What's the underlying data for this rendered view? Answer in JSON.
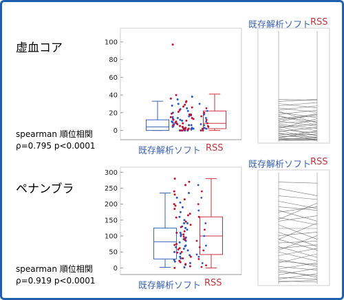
{
  "chart_data": [
    {
      "type": "box",
      "title": "虚血コア",
      "categories": [
        "既存解析ソフト",
        "RSS"
      ],
      "ylim": [
        -5,
        110
      ],
      "yticks": [
        0,
        20,
        40,
        60,
        80,
        100
      ],
      "grid": false,
      "series": [
        {
          "name": "既存解析ソフト",
          "color": "#3a63b8",
          "min": 0,
          "q1": 0,
          "median": 4,
          "q3": 12,
          "max": 33
        },
        {
          "name": "RSS",
          "color": "#c8323c",
          "min": 0,
          "q1": 2,
          "median": 8,
          "q3": 22,
          "max": 41
        }
      ],
      "points": {
        "blue": [
          0,
          1,
          2,
          3,
          5,
          6,
          8,
          10,
          12,
          14,
          16,
          18,
          20,
          22,
          25,
          28,
          30,
          35,
          0,
          2,
          4,
          7,
          9,
          11,
          13,
          15,
          3,
          1,
          0,
          6,
          38,
          24
        ],
        "red": [
          0,
          1,
          2,
          4,
          5,
          7,
          9,
          11,
          13,
          15,
          17,
          19,
          21,
          23,
          26,
          29,
          32,
          36,
          40,
          97,
          1,
          3,
          6,
          8,
          10,
          12,
          2,
          0,
          27,
          14,
          33,
          18
        ],
        "rss": [
          0,
          1,
          2,
          3,
          5,
          6,
          8,
          10,
          12,
          14,
          16,
          18,
          20,
          22,
          0,
          2,
          4,
          7,
          25,
          30
        ]
      },
      "stat_label": "spearman 順位相関",
      "stat_value": "ρ=0.795 p<0.0001",
      "pairs": [
        [
          0,
          0
        ],
        [
          0,
          2
        ],
        [
          1,
          3
        ],
        [
          2,
          1
        ],
        [
          3,
          6
        ],
        [
          4,
          3
        ],
        [
          5,
          8
        ],
        [
          6,
          5
        ],
        [
          8,
          12
        ],
        [
          10,
          7
        ],
        [
          12,
          15
        ],
        [
          14,
          9
        ],
        [
          16,
          18
        ],
        [
          18,
          13
        ],
        [
          20,
          24
        ],
        [
          22,
          17
        ],
        [
          24,
          28
        ],
        [
          26,
          21
        ],
        [
          28,
          32
        ],
        [
          30,
          26
        ],
        [
          32,
          35
        ],
        [
          34,
          30
        ],
        [
          36,
          38
        ],
        [
          38,
          37
        ],
        [
          2,
          9
        ],
        [
          9,
          2
        ],
        [
          15,
          11
        ],
        [
          11,
          20
        ],
        [
          7,
          0
        ],
        [
          13,
          4
        ],
        [
          19,
          23
        ],
        [
          23,
          14
        ],
        [
          27,
          16
        ],
        [
          17,
          25
        ],
        [
          1,
          0
        ],
        [
          0,
          1
        ]
      ],
      "pair_ylim": [
        0,
        100
      ],
      "pair_labels": [
        "既存解析ソフト",
        "RSS"
      ]
    },
    {
      "type": "box",
      "title": "ペナンブラ",
      "categories": [
        "既存解析ソフト",
        "RSS"
      ],
      "ylim": [
        -10,
        305
      ],
      "yticks": [
        0,
        50,
        100,
        150,
        200,
        250,
        300
      ],
      "grid": false,
      "series": [
        {
          "name": "既存解析ソフト",
          "color": "#3a63b8",
          "min": 2,
          "q1": 28,
          "median": 82,
          "q3": 125,
          "max": 235
        },
        {
          "name": "RSS",
          "color": "#c8323c",
          "min": 0,
          "q1": 42,
          "median": 100,
          "q3": 160,
          "max": 280
        }
      ],
      "points": {
        "blue": [
          2,
          10,
          20,
          30,
          40,
          50,
          60,
          70,
          80,
          90,
          100,
          110,
          120,
          130,
          140,
          150,
          160,
          175,
          190,
          205,
          220,
          235,
          25,
          45,
          65,
          85,
          105,
          125,
          55,
          95,
          15,
          140,
          68,
          35
        ],
        "red": [
          0,
          12,
          22,
          35,
          48,
          58,
          72,
          88,
          98,
          115,
          128,
          145,
          158,
          170,
          185,
          200,
          215,
          240,
          260,
          270,
          280,
          30,
          75,
          105,
          135,
          165,
          5,
          50,
          62,
          92,
          18,
          195,
          230,
          110
        ],
        "rss": [
          3,
          15,
          28,
          42,
          55,
          70,
          85,
          100,
          120,
          140,
          160,
          180,
          200,
          220,
          240,
          260,
          8,
          35,
          65
        ]
      },
      "stat_label": "spearman 順位相関",
      "stat_value": "ρ=0.919 p<0.0001",
      "pairs": [
        [
          278,
          275
        ],
        [
          260,
          240
        ],
        [
          240,
          230
        ],
        [
          225,
          205
        ],
        [
          210,
          200
        ],
        [
          195,
          210
        ],
        [
          180,
          160
        ],
        [
          170,
          185
        ],
        [
          160,
          120
        ],
        [
          150,
          150
        ],
        [
          140,
          100
        ],
        [
          130,
          140
        ],
        [
          120,
          90
        ],
        [
          110,
          115
        ],
        [
          100,
          70
        ],
        [
          95,
          105
        ],
        [
          85,
          60
        ],
        [
          75,
          95
        ],
        [
          65,
          45
        ],
        [
          55,
          80
        ],
        [
          45,
          35
        ],
        [
          38,
          55
        ],
        [
          30,
          20
        ],
        [
          22,
          40
        ],
        [
          15,
          10
        ],
        [
          10,
          25
        ],
        [
          5,
          2
        ],
        [
          2,
          8
        ],
        [
          200,
          170
        ],
        [
          175,
          220
        ],
        [
          120,
          165
        ],
        [
          90,
          130
        ],
        [
          60,
          50
        ],
        [
          35,
          15
        ]
      ],
      "pair_ylim": [
        0,
        300
      ],
      "pair_labels": [
        "既存解析ソフト",
        "RSS"
      ]
    }
  ]
}
